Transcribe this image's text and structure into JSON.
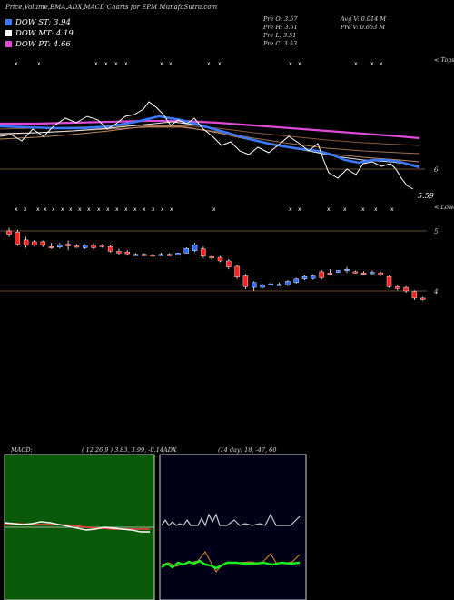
{
  "header": {
    "title": "Price,Volume,EMA,ADX,MACD Charts for EPM MunafaSutra.com"
  },
  "legend": [
    {
      "label": "DOW ST: 3.94",
      "color": "#3a78ff"
    },
    {
      "label": "DOW MT: 4.19",
      "color": "#ffffff"
    },
    {
      "label": "DOW PT: 4.66",
      "color": "#e04ad8"
    }
  ],
  "stats": {
    "prev_open": "Pre O: 3.57",
    "prev_high": "Pre H: 3.61",
    "prev_low": "Pre L: 3.51",
    "prev_close": "Pre C: 3.53",
    "avg_volume": "Avg V: 0.014 M",
    "prev_volume": "Pre V: 0.653 M"
  },
  "top_chart": {
    "top_tag": "< Tops",
    "lower_tag": "< Lower",
    "level_label": "6",
    "last_price_label": "5.59"
  },
  "candle_chart": {
    "level_hi": "5",
    "level_lo": "4"
  },
  "macd": {
    "label": "MACD:",
    "params": "( 12,26,9 ) 3.83, 3.99, -0.14"
  },
  "adx": {
    "label": "ADX",
    "params": "(14 day) 18, -47, 60"
  },
  "chart_data": {
    "type": "candlestick",
    "candles": [
      {
        "o": 5.0,
        "h": 5.05,
        "c": 4.94,
        "l": 4.9
      },
      {
        "o": 4.98,
        "h": 5.02,
        "c": 4.78,
        "l": 4.75
      },
      {
        "o": 4.85,
        "h": 4.9,
        "c": 4.76,
        "l": 4.72
      },
      {
        "o": 4.82,
        "h": 4.85,
        "c": 4.76,
        "l": 4.74
      },
      {
        "o": 4.82,
        "h": 4.84,
        "c": 4.76,
        "l": 4.73
      },
      {
        "o": 4.74,
        "h": 4.8,
        "c": 4.73,
        "l": 4.7
      },
      {
        "o": 4.73,
        "h": 4.8,
        "c": 4.77,
        "l": 4.71
      },
      {
        "o": 4.78,
        "h": 4.84,
        "c": 4.75,
        "l": 4.68
      },
      {
        "o": 4.75,
        "h": 4.78,
        "c": 4.74,
        "l": 4.72
      },
      {
        "o": 4.72,
        "h": 4.78,
        "c": 4.76,
        "l": 4.7
      },
      {
        "o": 4.76,
        "h": 4.8,
        "c": 4.72,
        "l": 4.69
      },
      {
        "o": 4.76,
        "h": 4.78,
        "c": 4.74,
        "l": 4.72
      },
      {
        "o": 4.74,
        "h": 4.76,
        "c": 4.66,
        "l": 4.64
      },
      {
        "o": 4.66,
        "h": 4.7,
        "c": 4.63,
        "l": 4.61
      },
      {
        "o": 4.65,
        "h": 4.68,
        "c": 4.62,
        "l": 4.6
      },
      {
        "o": 4.61,
        "h": 4.63,
        "c": 4.61,
        "l": 4.59
      },
      {
        "o": 4.61,
        "h": 4.63,
        "c": 4.6,
        "l": 4.58
      },
      {
        "o": 4.6,
        "h": 4.62,
        "c": 4.59,
        "l": 4.57
      },
      {
        "o": 4.61,
        "h": 4.64,
        "c": 4.61,
        "l": 4.6
      },
      {
        "o": 4.61,
        "h": 4.63,
        "c": 4.6,
        "l": 4.58
      },
      {
        "o": 4.6,
        "h": 4.64,
        "c": 4.63,
        "l": 4.59
      },
      {
        "o": 4.63,
        "h": 4.73,
        "c": 4.71,
        "l": 4.62
      },
      {
        "o": 4.67,
        "h": 4.8,
        "c": 4.77,
        "l": 4.65
      },
      {
        "o": 4.7,
        "h": 4.74,
        "c": 4.58,
        "l": 4.55
      },
      {
        "o": 4.57,
        "h": 4.6,
        "c": 4.55,
        "l": 4.52
      },
      {
        "o": 4.56,
        "h": 4.58,
        "c": 4.5,
        "l": 4.48
      },
      {
        "o": 4.5,
        "h": 4.53,
        "c": 4.4,
        "l": 4.36
      },
      {
        "o": 4.41,
        "h": 4.44,
        "c": 4.23,
        "l": 4.2
      },
      {
        "o": 4.25,
        "h": 4.28,
        "c": 4.07,
        "l": 4.03
      },
      {
        "o": 4.06,
        "h": 4.16,
        "c": 4.14,
        "l": 4.0
      },
      {
        "o": 4.06,
        "h": 4.12,
        "c": 4.1,
        "l": 4.04
      },
      {
        "o": 4.12,
        "h": 4.15,
        "c": 4.12,
        "l": 4.1
      },
      {
        "o": 4.11,
        "h": 4.14,
        "c": 4.11,
        "l": 4.09
      },
      {
        "o": 4.1,
        "h": 4.18,
        "c": 4.16,
        "l": 4.08
      },
      {
        "o": 4.14,
        "h": 4.22,
        "c": 4.2,
        "l": 4.12
      },
      {
        "o": 4.2,
        "h": 4.26,
        "c": 4.24,
        "l": 4.18
      },
      {
        "o": 4.21,
        "h": 4.28,
        "c": 4.25,
        "l": 4.19
      },
      {
        "o": 4.32,
        "h": 4.35,
        "c": 4.22,
        "l": 4.19
      },
      {
        "o": 4.3,
        "h": 4.36,
        "c": 4.28,
        "l": 4.26
      },
      {
        "o": 4.31,
        "h": 4.35,
        "c": 4.34,
        "l": 4.3
      },
      {
        "o": 4.35,
        "h": 4.4,
        "c": 4.36,
        "l": 4.3
      },
      {
        "o": 4.32,
        "h": 4.34,
        "c": 4.31,
        "l": 4.29
      },
      {
        "o": 4.3,
        "h": 4.33,
        "c": 4.28,
        "l": 4.26
      },
      {
        "o": 4.3,
        "h": 4.34,
        "c": 4.31,
        "l": 4.27
      },
      {
        "o": 4.3,
        "h": 4.32,
        "c": 4.27,
        "l": 4.25
      },
      {
        "o": 4.24,
        "h": 4.26,
        "c": 4.07,
        "l": 4.05
      },
      {
        "o": 4.07,
        "h": 4.1,
        "c": 4.04,
        "l": 4.01
      },
      {
        "o": 4.06,
        "h": 4.08,
        "c": 4.0,
        "l": 3.97
      },
      {
        "o": 3.99,
        "h": 4.01,
        "c": 3.88,
        "l": 3.85
      },
      {
        "o": 3.88,
        "h": 3.9,
        "c": 3.86,
        "l": 3.84
      }
    ],
    "price_axis": {
      "ylim": [
        3.75,
        5.1
      ],
      "levels": [
        5,
        4
      ]
    }
  }
}
